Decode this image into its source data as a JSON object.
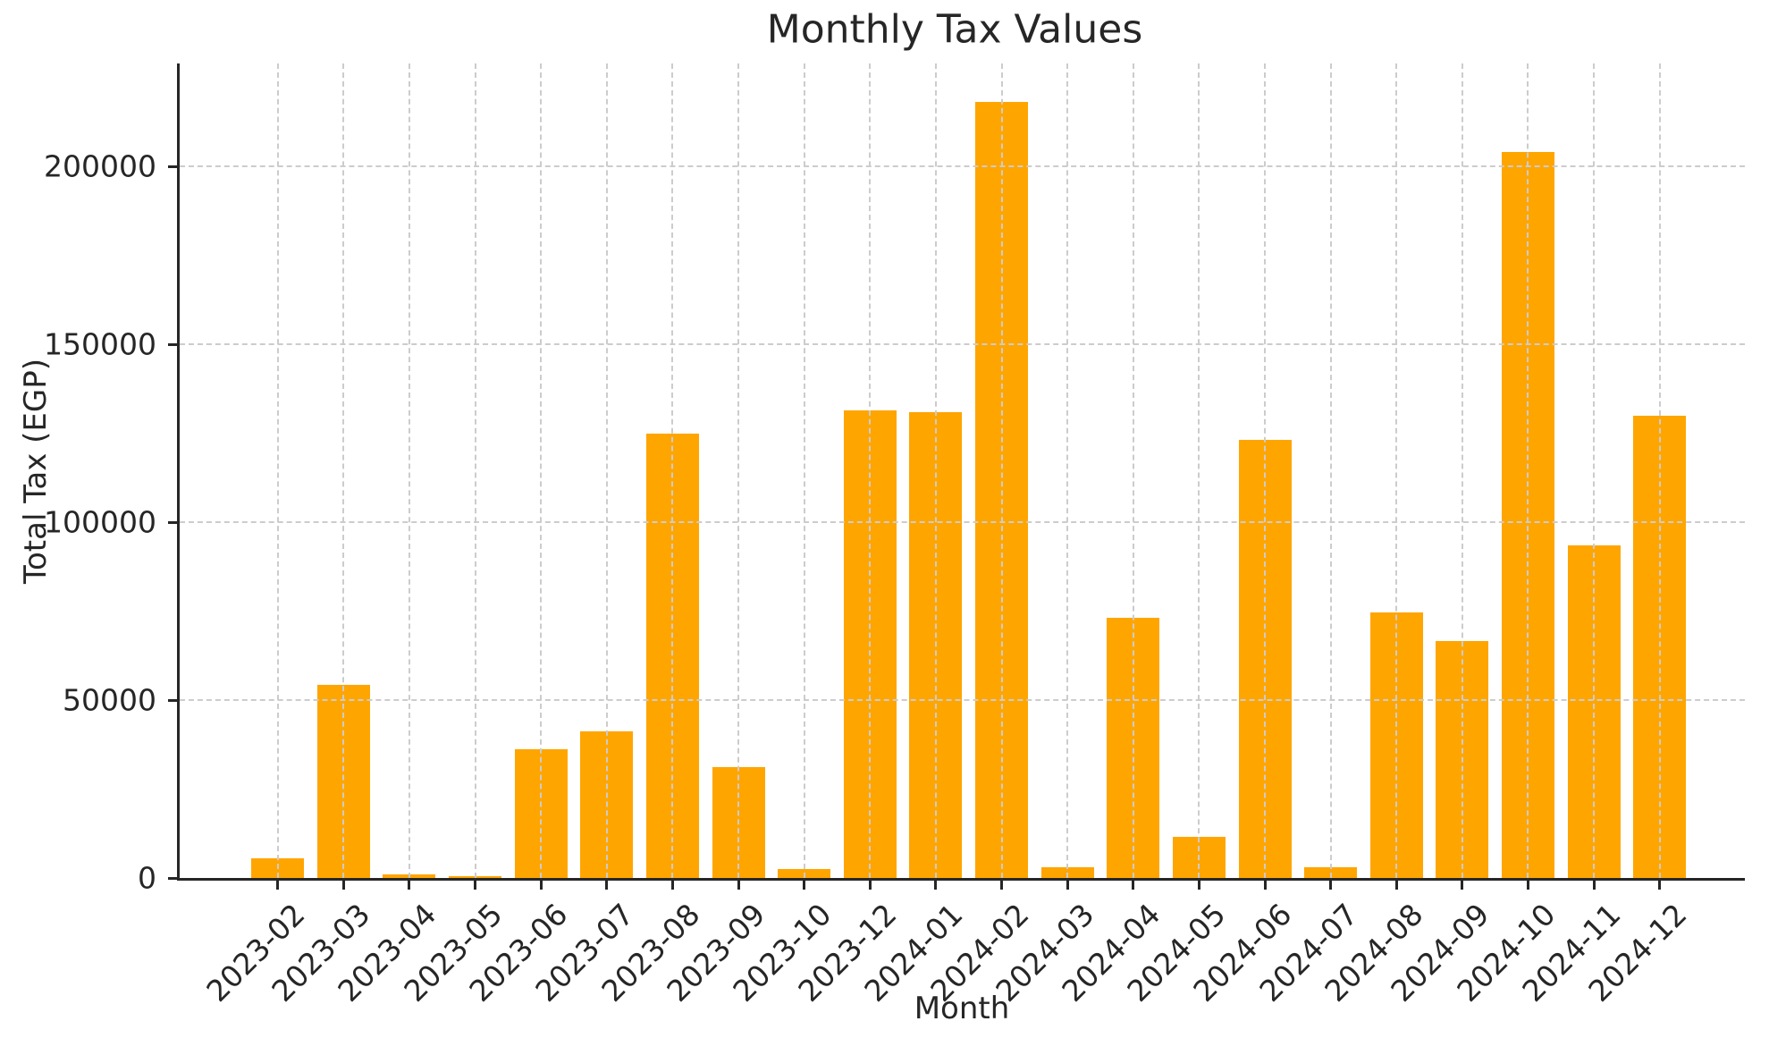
{
  "chart_data": {
    "type": "bar",
    "title": "Monthly Tax Values",
    "xlabel": "Month",
    "ylabel": "Total Tax (EGP)",
    "categories": [
      "2023-02",
      "2023-03",
      "2023-04",
      "2023-05",
      "2023-06",
      "2023-07",
      "2023-08",
      "2023-09",
      "2023-10",
      "2023-12",
      "2024-01",
      "2024-02",
      "2024-03",
      "2024-04",
      "2024-05",
      "2024-06",
      "2024-07",
      "2024-08",
      "2024-09",
      "2024-10",
      "2024-11",
      "2024-12"
    ],
    "values": [
      5500,
      54300,
      900,
      400,
      36100,
      41100,
      125000,
      31100,
      2500,
      131500,
      131000,
      218000,
      2900,
      73000,
      11600,
      123000,
      3000,
      74500,
      66500,
      204000,
      93500,
      130000
    ],
    "yticks": [
      0,
      50000,
      100000,
      150000,
      200000
    ],
    "ylim": [
      0,
      228900
    ],
    "bar_color": "#FFA500",
    "grid": {
      "style": "dashed",
      "color": "#cccccc",
      "above_bars": true
    },
    "legend_position": "none"
  }
}
